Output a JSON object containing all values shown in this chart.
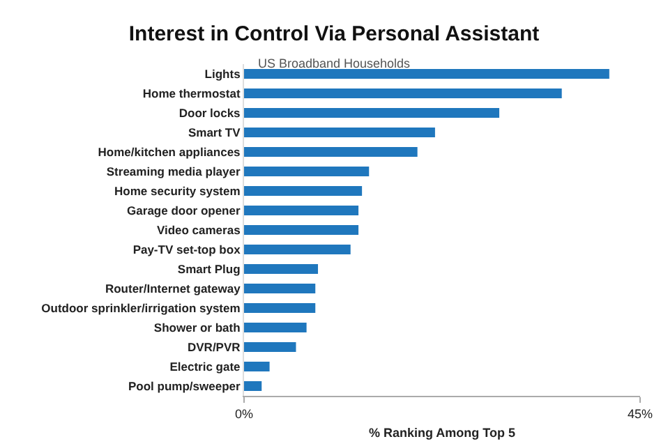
{
  "chart_data": {
    "type": "bar",
    "orientation": "horizontal",
    "title": "Interest in Control Via Personal Assistant",
    "subtitle": "US Broadband Households",
    "xlabel": "% Ranking Among Top 5",
    "categories": [
      "Lights",
      "Home thermostat",
      "Door locks",
      "Smart TV",
      "Home/kitchen appliances",
      "Streaming media player",
      "Home security system",
      "Garage door opener",
      "Video cameras",
      "Pay-TV set-top box",
      "Smart Plug",
      "Router/Internet gateway",
      "Outdoor sprinkler/irrigation system",
      "Shower or bath",
      "DVR/PVR",
      "Electric gate",
      "Pool pump/sweeper"
    ],
    "values": [
      41.5,
      36.1,
      29.0,
      21.7,
      19.7,
      14.2,
      13.4,
      13.0,
      13.0,
      12.1,
      8.4,
      8.1,
      8.1,
      7.1,
      5.9,
      2.9,
      2.0
    ],
    "color": "#1f77bd",
    "xlim": [
      0,
      45
    ],
    "xticks": [
      {
        "value": 0,
        "label": "0%"
      },
      {
        "value": 45,
        "label": "45%"
      }
    ],
    "grid": false
  }
}
